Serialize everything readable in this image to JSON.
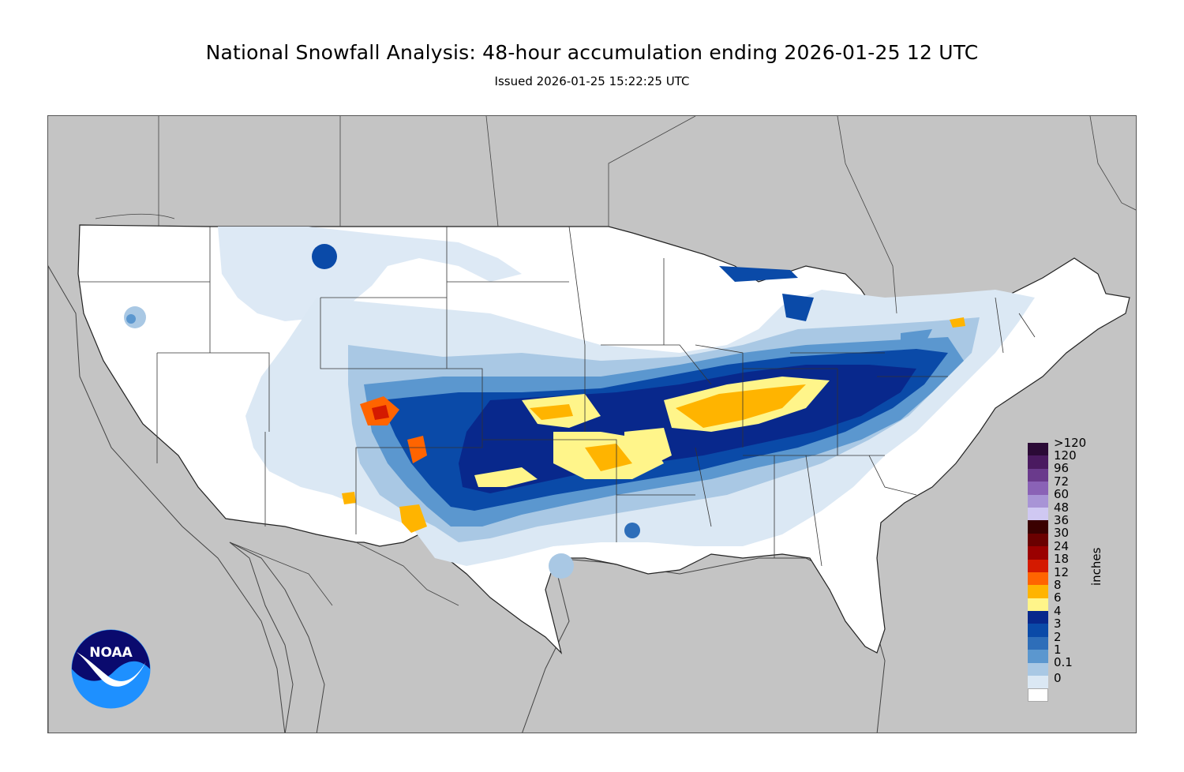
{
  "title": "National Snowfall Analysis: 48-hour accumulation ending 2026-01-25 12 UTC",
  "issued": "Issued 2026-01-25 15:22:25 UTC",
  "logo": {
    "text": "NOAA"
  },
  "colorbar": {
    "units": "inches",
    "labels": [
      ">120",
      "120",
      "96",
      "72",
      "60",
      "48",
      "36",
      "30",
      "24",
      "18",
      "12",
      "8",
      "6",
      "4",
      "3",
      "2",
      "1",
      "0.1",
      "0"
    ],
    "colors": [
      "#2b0a36",
      "#4a1a60",
      "#6a3a8c",
      "#8a62b6",
      "#a894d6",
      "#cfc8f2",
      "#3a0000",
      "#6a0000",
      "#9a0000",
      "#d41a00",
      "#ff6400",
      "#ffb400",
      "#fff58a",
      "#08288c",
      "#0a4aa8",
      "#2e6eb9",
      "#5b97cf",
      "#a9c8e4",
      "#dbe8f4",
      "#ffffff"
    ]
  },
  "colors": {
    "land_outside": "#c4c4c4",
    "conus": "#ffffff",
    "border": "#333333"
  }
}
